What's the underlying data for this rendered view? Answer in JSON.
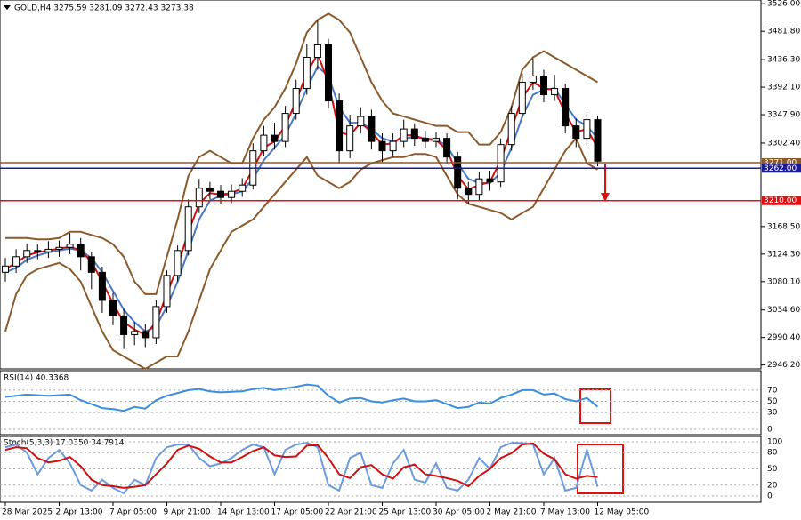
{
  "chart_data": [
    {
      "type": "candlestick",
      "title": "GOLD,H4 3275.59 3281.09 3272.43 3273.38",
      "categories": [
        "28 Mar 2025",
        null,
        null,
        null,
        null,
        "2 Apr 13:00",
        null,
        null,
        null,
        null,
        "7 Apr 05:00",
        null,
        null,
        null,
        null,
        "9 Apr 21:00",
        null,
        null,
        null,
        null,
        "14 Apr 13:00",
        null,
        null,
        null,
        null,
        "17 Apr 05:00",
        null,
        null,
        null,
        null,
        "22 Apr 21:00",
        null,
        null,
        null,
        null,
        "25 Apr 13:00",
        null,
        null,
        null,
        null,
        "30 Apr 05:00",
        null,
        null,
        null,
        null,
        "2 May 21:00",
        null,
        null,
        null,
        null,
        "7 May 13:00",
        null,
        null,
        null,
        null,
        "12 May 05:00"
      ],
      "open": [
        3095,
        3105,
        3120,
        3130,
        3128,
        3132,
        3135,
        3140,
        3120,
        3095,
        3050,
        3025,
        2995,
        3000,
        2990,
        3040,
        3090,
        3130,
        3200,
        3230,
        3225,
        3215,
        3225,
        3235,
        3290,
        3315,
        3305,
        3350,
        3390,
        3440,
        3460,
        3370,
        3290,
        3330,
        3345,
        3305,
        3290,
        3305,
        3325,
        3310,
        3305,
        3310,
        3280,
        3230,
        3220,
        3245,
        3240,
        3300,
        3350,
        3400,
        3410,
        3380,
        3390,
        3330,
        3310,
        3340
      ],
      "high": [
        3118,
        3132,
        3141,
        3140,
        3145,
        3146,
        3158,
        3150,
        3128,
        3104,
        3062,
        3036,
        3015,
        3012,
        3050,
        3098,
        3138,
        3212,
        3245,
        3240,
        3235,
        3236,
        3246,
        3302,
        3330,
        3335,
        3362,
        3404,
        3462,
        3500,
        3470,
        3382,
        3348,
        3360,
        3356,
        3318,
        3318,
        3340,
        3334,
        3322,
        3320,
        3318,
        3288,
        3240,
        3256,
        3258,
        3310,
        3362,
        3414,
        3438,
        3420,
        3412,
        3398,
        3342,
        3352,
        3346
      ],
      "low": [
        3080,
        3094,
        3110,
        3116,
        3118,
        3120,
        3124,
        3098,
        3068,
        3030,
        3010,
        2972,
        2978,
        2975,
        2980,
        3030,
        3080,
        3122,
        3190,
        3212,
        3204,
        3206,
        3216,
        3228,
        3282,
        3292,
        3296,
        3340,
        3380,
        3420,
        3358,
        3270,
        3278,
        3318,
        3292,
        3272,
        3280,
        3296,
        3298,
        3294,
        3296,
        3268,
        3212,
        3205,
        3210,
        3226,
        3232,
        3290,
        3342,
        3388,
        3368,
        3370,
        3318,
        3296,
        3298,
        3265
      ],
      "close": [
        3105,
        3120,
        3130,
        3128,
        3132,
        3135,
        3140,
        3120,
        3095,
        3050,
        3025,
        2995,
        3000,
        2990,
        3040,
        3090,
        3130,
        3200,
        3230,
        3225,
        3215,
        3225,
        3235,
        3290,
        3315,
        3305,
        3350,
        3390,
        3440,
        3460,
        3370,
        3290,
        3330,
        3345,
        3305,
        3290,
        3305,
        3325,
        3310,
        3305,
        3310,
        3280,
        3230,
        3220,
        3245,
        3240,
        3300,
        3350,
        3400,
        3410,
        3380,
        3390,
        3330,
        3310,
        3340,
        3273.38
      ],
      "lines": [
        {
          "color": "#8b5a2b",
          "values": [
            3150,
            3150,
            3150,
            3148,
            3148,
            3150,
            3160,
            3160,
            3155,
            3150,
            3140,
            3120,
            3080,
            3060,
            3060,
            3120,
            3180,
            3250,
            3280,
            3290,
            3280,
            3270,
            3270,
            3310,
            3340,
            3360,
            3390,
            3430,
            3480,
            3500,
            3510,
            3500,
            3480,
            3440,
            3400,
            3370,
            3350,
            3345,
            3340,
            3335,
            3330,
            3330,
            3320,
            3320,
            3300,
            3300,
            3320,
            3360,
            3420,
            3440,
            3450,
            3440,
            3430,
            3420,
            3410,
            3400
          ]
        },
        {
          "color": "#8b5a2b",
          "values": [
            3000,
            3060,
            3090,
            3100,
            3105,
            3110,
            3100,
            3080,
            3040,
            3000,
            2970,
            2960,
            2950,
            2940,
            2950,
            2960,
            2960,
            3000,
            3050,
            3100,
            3130,
            3160,
            3170,
            3180,
            3200,
            3220,
            3240,
            3260,
            3280,
            3250,
            3240,
            3230,
            3240,
            3260,
            3270,
            3275,
            3280,
            3280,
            3285,
            3285,
            3280,
            3250,
            3220,
            3205,
            3200,
            3195,
            3190,
            3180,
            3190,
            3200,
            3230,
            3260,
            3290,
            3310,
            3270,
            3260
          ]
        },
        {
          "color": "#4a78c8",
          "values": [
            3095,
            3102,
            3115,
            3122,
            3127,
            3130,
            3133,
            3130,
            3118,
            3095,
            3065,
            3035,
            3015,
            3000,
            3008,
            3040,
            3080,
            3130,
            3180,
            3210,
            3218,
            3220,
            3225,
            3245,
            3275,
            3295,
            3315,
            3350,
            3390,
            3425,
            3410,
            3360,
            3335,
            3335,
            3325,
            3310,
            3305,
            3310,
            3312,
            3310,
            3308,
            3298,
            3270,
            3245,
            3238,
            3238,
            3255,
            3295,
            3345,
            3380,
            3388,
            3390,
            3365,
            3340,
            3330,
            3310
          ]
        },
        {
          "color": "#d01010",
          "values": [
            3100,
            3110,
            3122,
            3127,
            3130,
            3133,
            3136,
            3130,
            3112,
            3080,
            3045,
            3015,
            3003,
            2995,
            3015,
            3060,
            3105,
            3160,
            3205,
            3222,
            3220,
            3222,
            3230,
            3260,
            3295,
            3305,
            3330,
            3370,
            3415,
            3445,
            3400,
            3320,
            3315,
            3335,
            3320,
            3300,
            3302,
            3315,
            3315,
            3308,
            3307,
            3292,
            3250,
            3228,
            3235,
            3240,
            3275,
            3325,
            3375,
            3400,
            3390,
            3388,
            3350,
            3320,
            3325,
            3295
          ]
        }
      ],
      "ylim": [
        2940,
        3532
      ],
      "yticks": [
        {
          "value": 3526,
          "label": "3526.00"
        },
        {
          "value": 3481.8,
          "label": "3481.80"
        },
        {
          "value": 3436.3,
          "label": "3436.30"
        },
        {
          "value": 3392.1,
          "label": "3392.10"
        },
        {
          "value": 3347.9,
          "label": "3347.90"
        },
        {
          "value": 3302.4,
          "label": "3302.40"
        },
        {
          "value": 3168.5,
          "label": "3168.50"
        },
        {
          "value": 3124.3,
          "label": "3124.30"
        },
        {
          "value": 3080.1,
          "label": "3080.10"
        },
        {
          "value": 3034.6,
          "label": "3034.60"
        },
        {
          "value": 2990.4,
          "label": "2990.40"
        },
        {
          "value": 2946.2,
          "label": "2946.20"
        }
      ],
      "levels": [
        {
          "value": 3271,
          "label": "3271.00",
          "color": "#8b5a2b"
        },
        {
          "value": 3262,
          "label": "3262.00",
          "color": "#1a1a9a"
        },
        {
          "value": 3210,
          "label": "3210.00",
          "color": "#e01010"
        }
      ]
    },
    {
      "type": "line",
      "title": "RSI(14) 40.3368",
      "ylim": [
        0,
        100
      ],
      "yticks": [
        70,
        50,
        30,
        0
      ],
      "series": [
        {
          "color": "#3a8fe0",
          "values": [
            58,
            60,
            62,
            61,
            60,
            61,
            62,
            52,
            45,
            38,
            36,
            33,
            40,
            37,
            52,
            60,
            65,
            70,
            72,
            68,
            66,
            67,
            68,
            72,
            74,
            70,
            73,
            76,
            80,
            78,
            60,
            48,
            55,
            56,
            50,
            48,
            52,
            55,
            50,
            50,
            52,
            45,
            38,
            40,
            48,
            46,
            56,
            62,
            70,
            70,
            62,
            64,
            54,
            50,
            56,
            40.3368
          ]
        }
      ]
    },
    {
      "type": "line",
      "title": "Stoch(5,3,3) 17.0350 34.7914",
      "ylim": [
        0,
        100
      ],
      "yticks": [
        100,
        80,
        50,
        20,
        0
      ],
      "series": [
        {
          "color": "#6a9be0",
          "values": [
            90,
            95,
            80,
            40,
            70,
            85,
            60,
            20,
            10,
            30,
            15,
            5,
            30,
            20,
            70,
            90,
            95,
            95,
            70,
            55,
            60,
            70,
            85,
            95,
            90,
            40,
            85,
            95,
            98,
            90,
            20,
            10,
            70,
            80,
            20,
            15,
            60,
            85,
            30,
            25,
            60,
            15,
            10,
            30,
            70,
            50,
            90,
            98,
            98,
            95,
            40,
            70,
            10,
            15,
            85,
            17.035
          ]
        },
        {
          "color": "#d01010",
          "values": [
            85,
            90,
            88,
            70,
            62,
            65,
            72,
            55,
            30,
            20,
            18,
            15,
            17,
            20,
            40,
            60,
            85,
            93,
            87,
            73,
            62,
            62,
            72,
            83,
            90,
            75,
            72,
            73,
            93,
            94,
            70,
            40,
            33,
            53,
            57,
            40,
            32,
            53,
            58,
            40,
            37,
            33,
            28,
            18,
            37,
            50,
            70,
            79,
            95,
            97,
            78,
            68,
            40,
            32,
            37,
            34.7914
          ]
        }
      ]
    }
  ]
}
